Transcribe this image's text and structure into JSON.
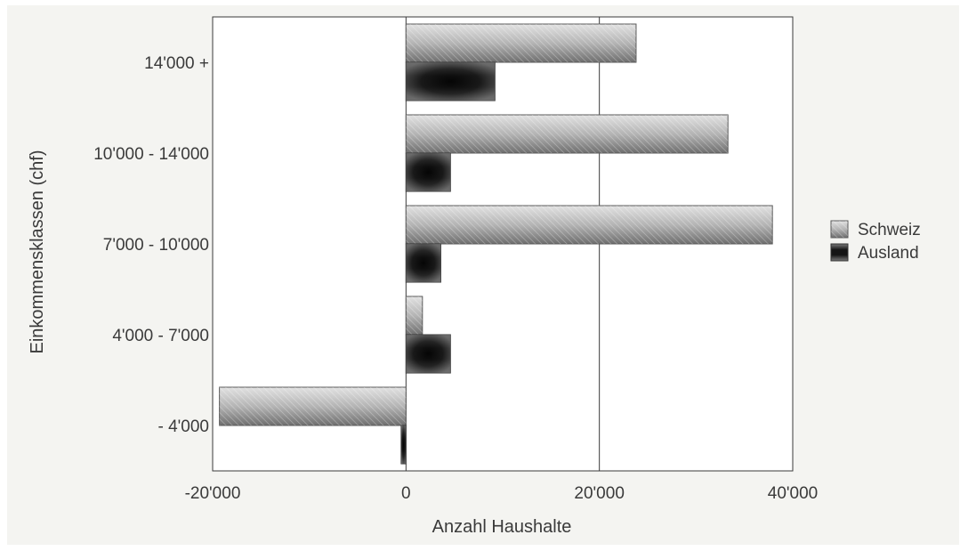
{
  "chart_data": {
    "type": "bar",
    "orientation": "horizontal",
    "categories": [
      "- 4'000",
      "4'000 - 7'000",
      "7'000 - 10'000",
      "10'000 - 14'000",
      "14'000 +"
    ],
    "series": [
      {
        "name": "Schweiz",
        "values": [
          -19300,
          1700,
          37900,
          33300,
          23800
        ],
        "color": "#a8a8a8"
      },
      {
        "name": "Ausland",
        "values": [
          -500,
          4600,
          3600,
          4600,
          9200
        ],
        "color": "#1a1a1a"
      }
    ],
    "xlabel": "Anzahl Haushalte",
    "ylabel": "Einkommensklassen (chf)",
    "xlim": [
      -20000,
      40000
    ],
    "xticks": [
      -20000,
      0,
      20000,
      40000
    ],
    "xtick_labels": [
      "-20'000",
      "0",
      "20'000",
      "40'000"
    ],
    "grid": "vertical major lines",
    "legend_position": "right"
  }
}
